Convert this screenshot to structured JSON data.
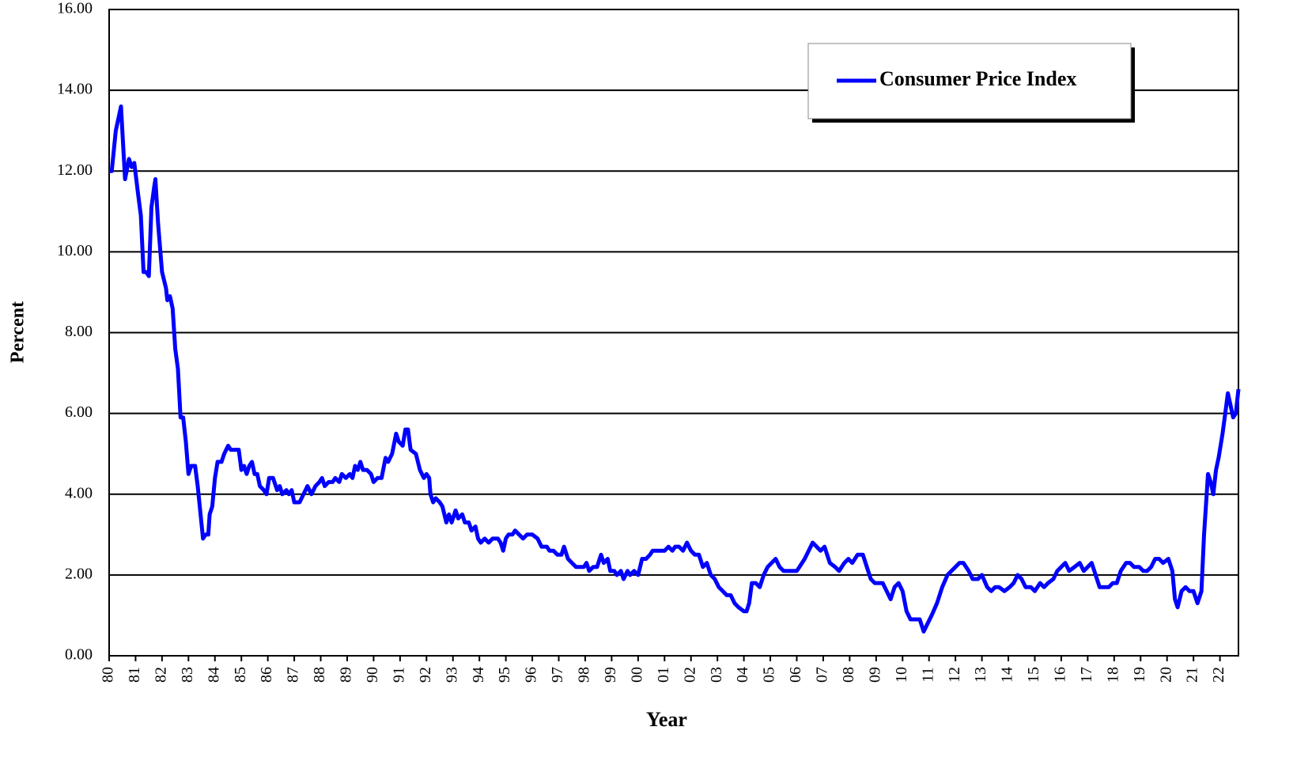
{
  "chart_data": {
    "type": "line",
    "x_label": "Year",
    "y_label": "Percent",
    "xlim": [
      1980,
      2022.7
    ],
    "ylim": [
      0,
      16
    ],
    "grid": true,
    "legend": "upper right",
    "yticks": [
      {
        "value": 0,
        "label": "0.00"
      },
      {
        "value": 2,
        "label": "2.00"
      },
      {
        "value": 4,
        "label": "4.00"
      },
      {
        "value": 6,
        "label": "6.00"
      },
      {
        "value": 8,
        "label": "8.00"
      },
      {
        "value": 10,
        "label": "10.00"
      },
      {
        "value": 12,
        "label": "12.00"
      },
      {
        "value": 14,
        "label": "14.00"
      },
      {
        "value": 16,
        "label": "16.00"
      }
    ],
    "xticks": [
      {
        "value": 1980,
        "label": "80"
      },
      {
        "value": 1981,
        "label": "81"
      },
      {
        "value": 1982,
        "label": "82"
      },
      {
        "value": 1983,
        "label": "83"
      },
      {
        "value": 1984,
        "label": "84"
      },
      {
        "value": 1985,
        "label": "85"
      },
      {
        "value": 1986,
        "label": "86"
      },
      {
        "value": 1987,
        "label": "87"
      },
      {
        "value": 1988,
        "label": "88"
      },
      {
        "value": 1989,
        "label": "89"
      },
      {
        "value": 1990,
        "label": "90"
      },
      {
        "value": 1991,
        "label": "91"
      },
      {
        "value": 1992,
        "label": "92"
      },
      {
        "value": 1993,
        "label": "93"
      },
      {
        "value": 1994,
        "label": "94"
      },
      {
        "value": 1995,
        "label": "95"
      },
      {
        "value": 1996,
        "label": "96"
      },
      {
        "value": 1997,
        "label": "97"
      },
      {
        "value": 1998,
        "label": "98"
      },
      {
        "value": 1999,
        "label": "99"
      },
      {
        "value": 2000,
        "label": "00"
      },
      {
        "value": 2001,
        "label": "01"
      },
      {
        "value": 2002,
        "label": "02"
      },
      {
        "value": 2003,
        "label": "03"
      },
      {
        "value": 2004,
        "label": "04"
      },
      {
        "value": 2005,
        "label": "05"
      },
      {
        "value": 2006,
        "label": "06"
      },
      {
        "value": 2007,
        "label": "07"
      },
      {
        "value": 2008,
        "label": "08"
      },
      {
        "value": 2009,
        "label": "09"
      },
      {
        "value": 2010,
        "label": "10"
      },
      {
        "value": 2011,
        "label": "11"
      },
      {
        "value": 2012,
        "label": "12"
      },
      {
        "value": 2013,
        "label": "13"
      },
      {
        "value": 2014,
        "label": "14"
      },
      {
        "value": 2015,
        "label": "15"
      },
      {
        "value": 2016,
        "label": "16"
      },
      {
        "value": 2017,
        "label": "17"
      },
      {
        "value": 2018,
        "label": "18"
      },
      {
        "value": 2019,
        "label": "19"
      },
      {
        "value": 2020,
        "label": "20"
      },
      {
        "value": 2021,
        "label": "21"
      },
      {
        "value": 2022,
        "label": "22"
      }
    ],
    "x": [
      1980.0,
      1980.1,
      1980.25,
      1980.45,
      1980.6,
      1980.75,
      1980.85,
      1980.95,
      1981.1,
      1981.2,
      1981.3,
      1981.4,
      1981.5,
      1981.6,
      1981.7,
      1981.75,
      1981.85,
      1982.0,
      1982.15,
      1982.2,
      1982.3,
      1982.4,
      1982.5,
      1982.6,
      1982.7,
      1982.8,
      1982.9,
      1983.0,
      1983.1,
      1983.25,
      1983.35,
      1983.55,
      1983.65,
      1983.75,
      1983.8,
      1983.9,
      1984.0,
      1984.1,
      1984.25,
      1984.35,
      1984.5,
      1984.6,
      1984.75,
      1984.9,
      1985.0,
      1985.1,
      1985.2,
      1985.3,
      1985.4,
      1985.5,
      1985.6,
      1985.7,
      1985.85,
      1985.95,
      1986.05,
      1986.2,
      1986.35,
      1986.45,
      1986.55,
      1986.7,
      1986.8,
      1986.9,
      1987.0,
      1987.2,
      1987.35,
      1987.5,
      1987.65,
      1987.8,
      1987.95,
      1988.05,
      1988.15,
      1988.3,
      1988.45,
      1988.55,
      1988.7,
      1988.8,
      1988.95,
      1989.1,
      1989.2,
      1989.3,
      1989.4,
      1989.5,
      1989.6,
      1989.75,
      1989.9,
      1990.0,
      1990.15,
      1990.3,
      1990.45,
      1990.55,
      1990.7,
      1990.85,
      1990.95,
      1991.1,
      1991.2,
      1991.3,
      1991.4,
      1991.6,
      1991.75,
      1991.9,
      1992.0,
      1992.1,
      1992.15,
      1992.25,
      1992.35,
      1992.5,
      1992.6,
      1992.75,
      1992.85,
      1992.95,
      1993.1,
      1993.2,
      1993.35,
      1993.45,
      1993.6,
      1993.7,
      1993.85,
      1993.95,
      1994.05,
      1994.2,
      1994.35,
      1994.5,
      1994.7,
      1994.8,
      1994.9,
      1995.0,
      1995.1,
      1995.25,
      1995.35,
      1995.5,
      1995.65,
      1995.8,
      1996.0,
      1996.2,
      1996.35,
      1996.55,
      1996.65,
      1996.8,
      1996.95,
      1997.1,
      1997.2,
      1997.35,
      1997.5,
      1997.65,
      1997.8,
      1997.95,
      1998.05,
      1998.15,
      1998.3,
      1998.45,
      1998.6,
      1998.7,
      1998.85,
      1998.95,
      1999.1,
      1999.2,
      1999.35,
      1999.45,
      1999.6,
      1999.7,
      1999.85,
      2000.0,
      2000.15,
      2000.3,
      2000.45,
      2000.55,
      2000.7,
      2000.85,
      2001.0,
      2001.15,
      2001.3,
      2001.4,
      2001.55,
      2001.7,
      2001.85,
      2002.0,
      2002.15,
      2002.3,
      2002.45,
      2002.6,
      2002.75,
      2002.9,
      2003.05,
      2003.2,
      2003.35,
      2003.5,
      2003.65,
      2003.8,
      2004.0,
      2004.1,
      2004.2,
      2004.3,
      2004.45,
      2004.6,
      2004.75,
      2004.9,
      2005.05,
      2005.2,
      2005.35,
      2005.5,
      2005.65,
      2005.8,
      2006.0,
      2006.1,
      2006.3,
      2006.45,
      2006.6,
      2006.75,
      2006.9,
      2007.05,
      2007.25,
      2007.45,
      2007.6,
      2007.8,
      2007.95,
      2008.1,
      2008.3,
      2008.5,
      2008.65,
      2008.8,
      2008.95,
      2009.1,
      2009.25,
      2009.4,
      2009.55,
      2009.7,
      2009.85,
      2010.0,
      2010.15,
      2010.3,
      2010.5,
      2010.65,
      2010.8,
      2010.95,
      2011.1,
      2011.3,
      2011.5,
      2011.7,
      2011.85,
      2012.0,
      2012.15,
      2012.3,
      2012.5,
      2012.65,
      2012.85,
      2013.0,
      2013.2,
      2013.35,
      2013.5,
      2013.65,
      2013.85,
      2014.05,
      2014.2,
      2014.35,
      2014.5,
      2014.65,
      2014.85,
      2015.0,
      2015.2,
      2015.35,
      2015.5,
      2015.7,
      2015.85,
      2016.0,
      2016.15,
      2016.3,
      2016.5,
      2016.7,
      2016.85,
      2017.0,
      2017.15,
      2017.3,
      2017.45,
      2017.65,
      2017.8,
      2017.95,
      2018.1,
      2018.25,
      2018.45,
      2018.6,
      2018.75,
      2018.95,
      2019.1,
      2019.25,
      2019.4,
      2019.55,
      2019.7,
      2019.85,
      2020.05,
      2020.2,
      2020.3,
      2020.4,
      2020.55,
      2020.7,
      2020.85,
      2021.0,
      2021.15,
      2021.3,
      2021.4,
      2021.55,
      2021.65,
      2021.75,
      2021.85,
      2021.95,
      2022.1,
      2022.2,
      2022.3,
      2022.4,
      2022.5,
      2022.6,
      2022.7
    ],
    "series": [
      {
        "name": "Consumer Price Index",
        "color": "#0000ff",
        "values": [
          12.0,
          12.0,
          13.0,
          13.6,
          11.8,
          12.3,
          12.1,
          12.2,
          11.4,
          10.9,
          9.5,
          9.5,
          9.4,
          11.1,
          11.6,
          11.8,
          10.7,
          9.5,
          9.1,
          8.8,
          8.9,
          8.6,
          7.6,
          7.1,
          5.9,
          5.9,
          5.3,
          4.5,
          4.7,
          4.7,
          4.2,
          2.9,
          3.0,
          3.0,
          3.5,
          3.7,
          4.4,
          4.8,
          4.8,
          5.0,
          5.2,
          5.1,
          5.1,
          5.1,
          4.6,
          4.7,
          4.5,
          4.7,
          4.8,
          4.5,
          4.5,
          4.2,
          4.1,
          4.0,
          4.4,
          4.4,
          4.1,
          4.2,
          4.0,
          4.1,
          4.0,
          4.1,
          3.8,
          3.8,
          4.0,
          4.2,
          4.0,
          4.2,
          4.3,
          4.4,
          4.2,
          4.3,
          4.3,
          4.4,
          4.3,
          4.5,
          4.4,
          4.5,
          4.4,
          4.7,
          4.6,
          4.8,
          4.6,
          4.6,
          4.5,
          4.3,
          4.4,
          4.4,
          4.9,
          4.8,
          5.0,
          5.5,
          5.3,
          5.2,
          5.6,
          5.6,
          5.1,
          5.0,
          4.6,
          4.4,
          4.5,
          4.4,
          4.0,
          3.8,
          3.9,
          3.8,
          3.7,
          3.3,
          3.5,
          3.3,
          3.6,
          3.4,
          3.5,
          3.3,
          3.3,
          3.1,
          3.2,
          2.9,
          2.8,
          2.9,
          2.8,
          2.9,
          2.9,
          2.8,
          2.6,
          2.9,
          3.0,
          3.0,
          3.1,
          3.0,
          2.9,
          3.0,
          3.0,
          2.9,
          2.7,
          2.7,
          2.6,
          2.6,
          2.5,
          2.5,
          2.7,
          2.4,
          2.3,
          2.2,
          2.2,
          2.2,
          2.3,
          2.1,
          2.2,
          2.2,
          2.5,
          2.3,
          2.4,
          2.1,
          2.1,
          2.0,
          2.1,
          1.9,
          2.1,
          2.0,
          2.1,
          2.0,
          2.4,
          2.4,
          2.5,
          2.6,
          2.6,
          2.6,
          2.6,
          2.7,
          2.6,
          2.7,
          2.7,
          2.6,
          2.8,
          2.6,
          2.5,
          2.5,
          2.2,
          2.3,
          2.0,
          1.9,
          1.7,
          1.6,
          1.5,
          1.5,
          1.3,
          1.2,
          1.1,
          1.1,
          1.3,
          1.8,
          1.8,
          1.7,
          2.0,
          2.2,
          2.3,
          2.4,
          2.2,
          2.1,
          2.1,
          2.1,
          2.1,
          2.2,
          2.4,
          2.6,
          2.8,
          2.7,
          2.6,
          2.7,
          2.3,
          2.2,
          2.1,
          2.3,
          2.4,
          2.3,
          2.5,
          2.5,
          2.2,
          1.9,
          1.8,
          1.8,
          1.8,
          1.6,
          1.4,
          1.7,
          1.8,
          1.6,
          1.1,
          0.9,
          0.9,
          0.9,
          0.6,
          0.8,
          1.0,
          1.3,
          1.7,
          2.0,
          2.1,
          2.2,
          2.3,
          2.3,
          2.1,
          1.9,
          1.9,
          2.0,
          1.7,
          1.6,
          1.7,
          1.7,
          1.6,
          1.7,
          1.8,
          2.0,
          1.9,
          1.7,
          1.7,
          1.6,
          1.8,
          1.7,
          1.8,
          1.9,
          2.1,
          2.2,
          2.3,
          2.1,
          2.2,
          2.3,
          2.1,
          2.2,
          2.3,
          2.0,
          1.7,
          1.7,
          1.7,
          1.8,
          1.8,
          2.1,
          2.3,
          2.3,
          2.2,
          2.2,
          2.1,
          2.1,
          2.2,
          2.4,
          2.4,
          2.3,
          2.4,
          2.1,
          1.4,
          1.2,
          1.6,
          1.7,
          1.6,
          1.6,
          1.3,
          1.6,
          3.0,
          4.5,
          4.3,
          4.0,
          4.6,
          4.9,
          5.5,
          6.0,
          6.5,
          6.2,
          5.9,
          6.0,
          6.6
        ]
      }
    ]
  }
}
